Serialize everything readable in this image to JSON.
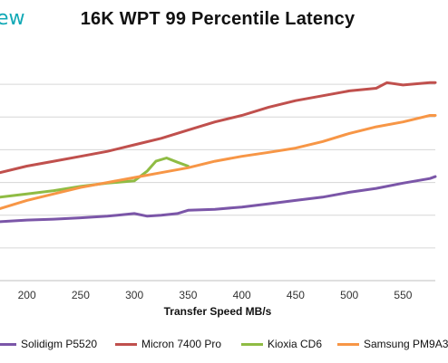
{
  "brand": {
    "text": "ew"
  },
  "chart_data": {
    "type": "line",
    "title": "16K WPT 99 Percentile Latency",
    "xlabel": "Transfer Speed MB/s",
    "ylabel": "",
    "xlim": [
      175,
      580
    ],
    "ylim": [
      0,
      7
    ],
    "grid": true,
    "x_ticks": [
      200,
      250,
      300,
      350,
      400,
      450,
      500,
      550
    ],
    "x_tick_labels": [
      "200",
      "250",
      "300",
      "350",
      "400",
      "450",
      "500",
      "550"
    ],
    "y_gridlines": [
      1,
      2,
      3,
      4,
      5,
      6
    ],
    "legend_position": "bottom",
    "series": [
      {
        "name": "Solidigm P5520",
        "color": "#7b56a8",
        "x": [
          175,
          200,
          225,
          250,
          275,
          300,
          312,
          325,
          340,
          350,
          375,
          400,
          425,
          450,
          475,
          500,
          525,
          550,
          575,
          580
        ],
        "y": [
          1.8,
          1.85,
          1.88,
          1.92,
          1.97,
          2.05,
          1.97,
          2.0,
          2.05,
          2.15,
          2.18,
          2.25,
          2.35,
          2.45,
          2.55,
          2.7,
          2.82,
          2.98,
          3.12,
          3.18
        ]
      },
      {
        "name": "Micron 7400 Pro",
        "color": "#c0504d",
        "x": [
          175,
          200,
          225,
          250,
          275,
          300,
          325,
          350,
          375,
          400,
          425,
          450,
          475,
          500,
          525,
          535,
          550,
          575,
          580
        ],
        "y": [
          3.3,
          3.5,
          3.65,
          3.8,
          3.95,
          4.15,
          4.35,
          4.6,
          4.85,
          5.05,
          5.3,
          5.5,
          5.65,
          5.8,
          5.88,
          6.05,
          5.98,
          6.05,
          6.05
        ]
      },
      {
        "name": "Kioxia CD6",
        "color": "#8fbc44",
        "x": [
          175,
          200,
          225,
          250,
          275,
          300,
          312,
          320,
          330,
          340,
          350
        ],
        "y": [
          2.55,
          2.65,
          2.75,
          2.88,
          2.98,
          3.05,
          3.35,
          3.65,
          3.75,
          3.62,
          3.5
        ]
      },
      {
        "name": "Samsung PM9A3",
        "color": "#f79646",
        "x": [
          175,
          200,
          225,
          250,
          275,
          300,
          325,
          350,
          375,
          400,
          425,
          450,
          475,
          500,
          525,
          550,
          575,
          580
        ],
        "y": [
          2.2,
          2.45,
          2.65,
          2.85,
          3.0,
          3.15,
          3.3,
          3.45,
          3.65,
          3.8,
          3.92,
          4.05,
          4.25,
          4.5,
          4.7,
          4.85,
          5.05,
          5.05
        ]
      }
    ]
  }
}
